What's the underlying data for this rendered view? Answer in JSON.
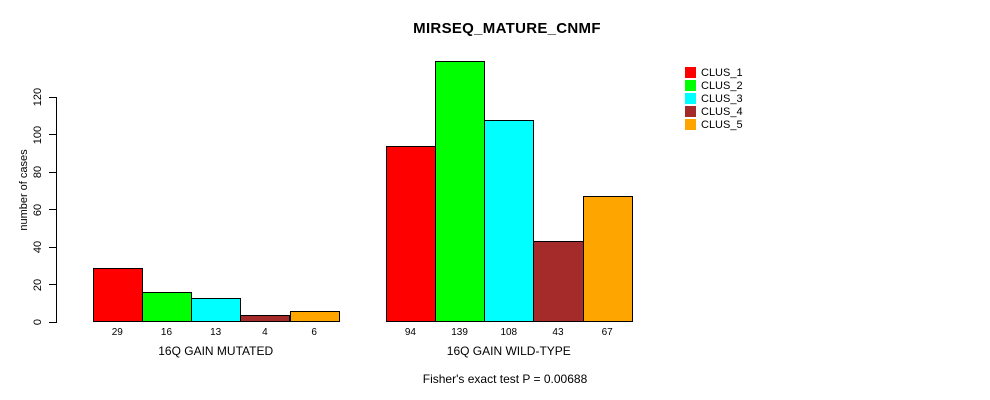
{
  "chart_data": {
    "type": "bar",
    "title": "MIRSEQ_MATURE_CNMF",
    "ylabel": "number of cases",
    "xlabel": "",
    "footer": "Fisher's exact test P = 0.00688",
    "yticks": [
      0,
      20,
      40,
      60,
      80,
      100,
      120
    ],
    "ylim": [
      0,
      139
    ],
    "grid": false,
    "legend_position": "top-right",
    "bar_border_color": "#000000",
    "legend": [
      {
        "label": "CLUS_1",
        "color": "#ff0000"
      },
      {
        "label": "CLUS_2",
        "color": "#00ff00"
      },
      {
        "label": "CLUS_3",
        "color": "#00ffff"
      },
      {
        "label": "CLUS_4",
        "color": "#a52a2a"
      },
      {
        "label": "CLUS_5",
        "color": "#ffa500"
      }
    ],
    "categories": [
      "CLUS_1",
      "CLUS_2",
      "CLUS_3",
      "CLUS_4",
      "CLUS_5"
    ],
    "groups": [
      {
        "label": "16Q GAIN MUTATED",
        "values": [
          29,
          16,
          13,
          4,
          6
        ]
      },
      {
        "label": "16Q GAIN WILD-TYPE",
        "values": [
          94,
          139,
          108,
          43,
          67
        ]
      }
    ]
  }
}
